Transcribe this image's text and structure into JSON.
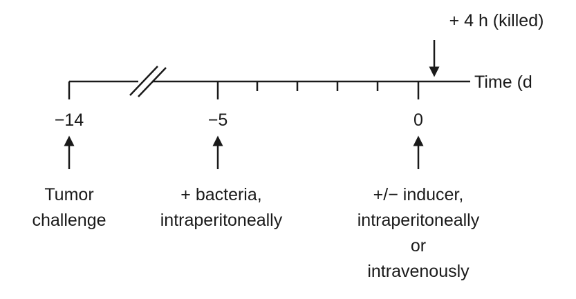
{
  "annotation": "+ 4 h (killed)",
  "axis_label": "Time (d",
  "ticks": [
    "−14",
    "−5",
    "0"
  ],
  "events": [
    {
      "lines": [
        "Tumor",
        "challenge"
      ]
    },
    {
      "lines": [
        "+ bacteria,",
        "intraperitoneally"
      ]
    },
    {
      "lines": [
        "+/− inducer,",
        "intraperitoneally",
        "or",
        "intravenously"
      ]
    }
  ]
}
